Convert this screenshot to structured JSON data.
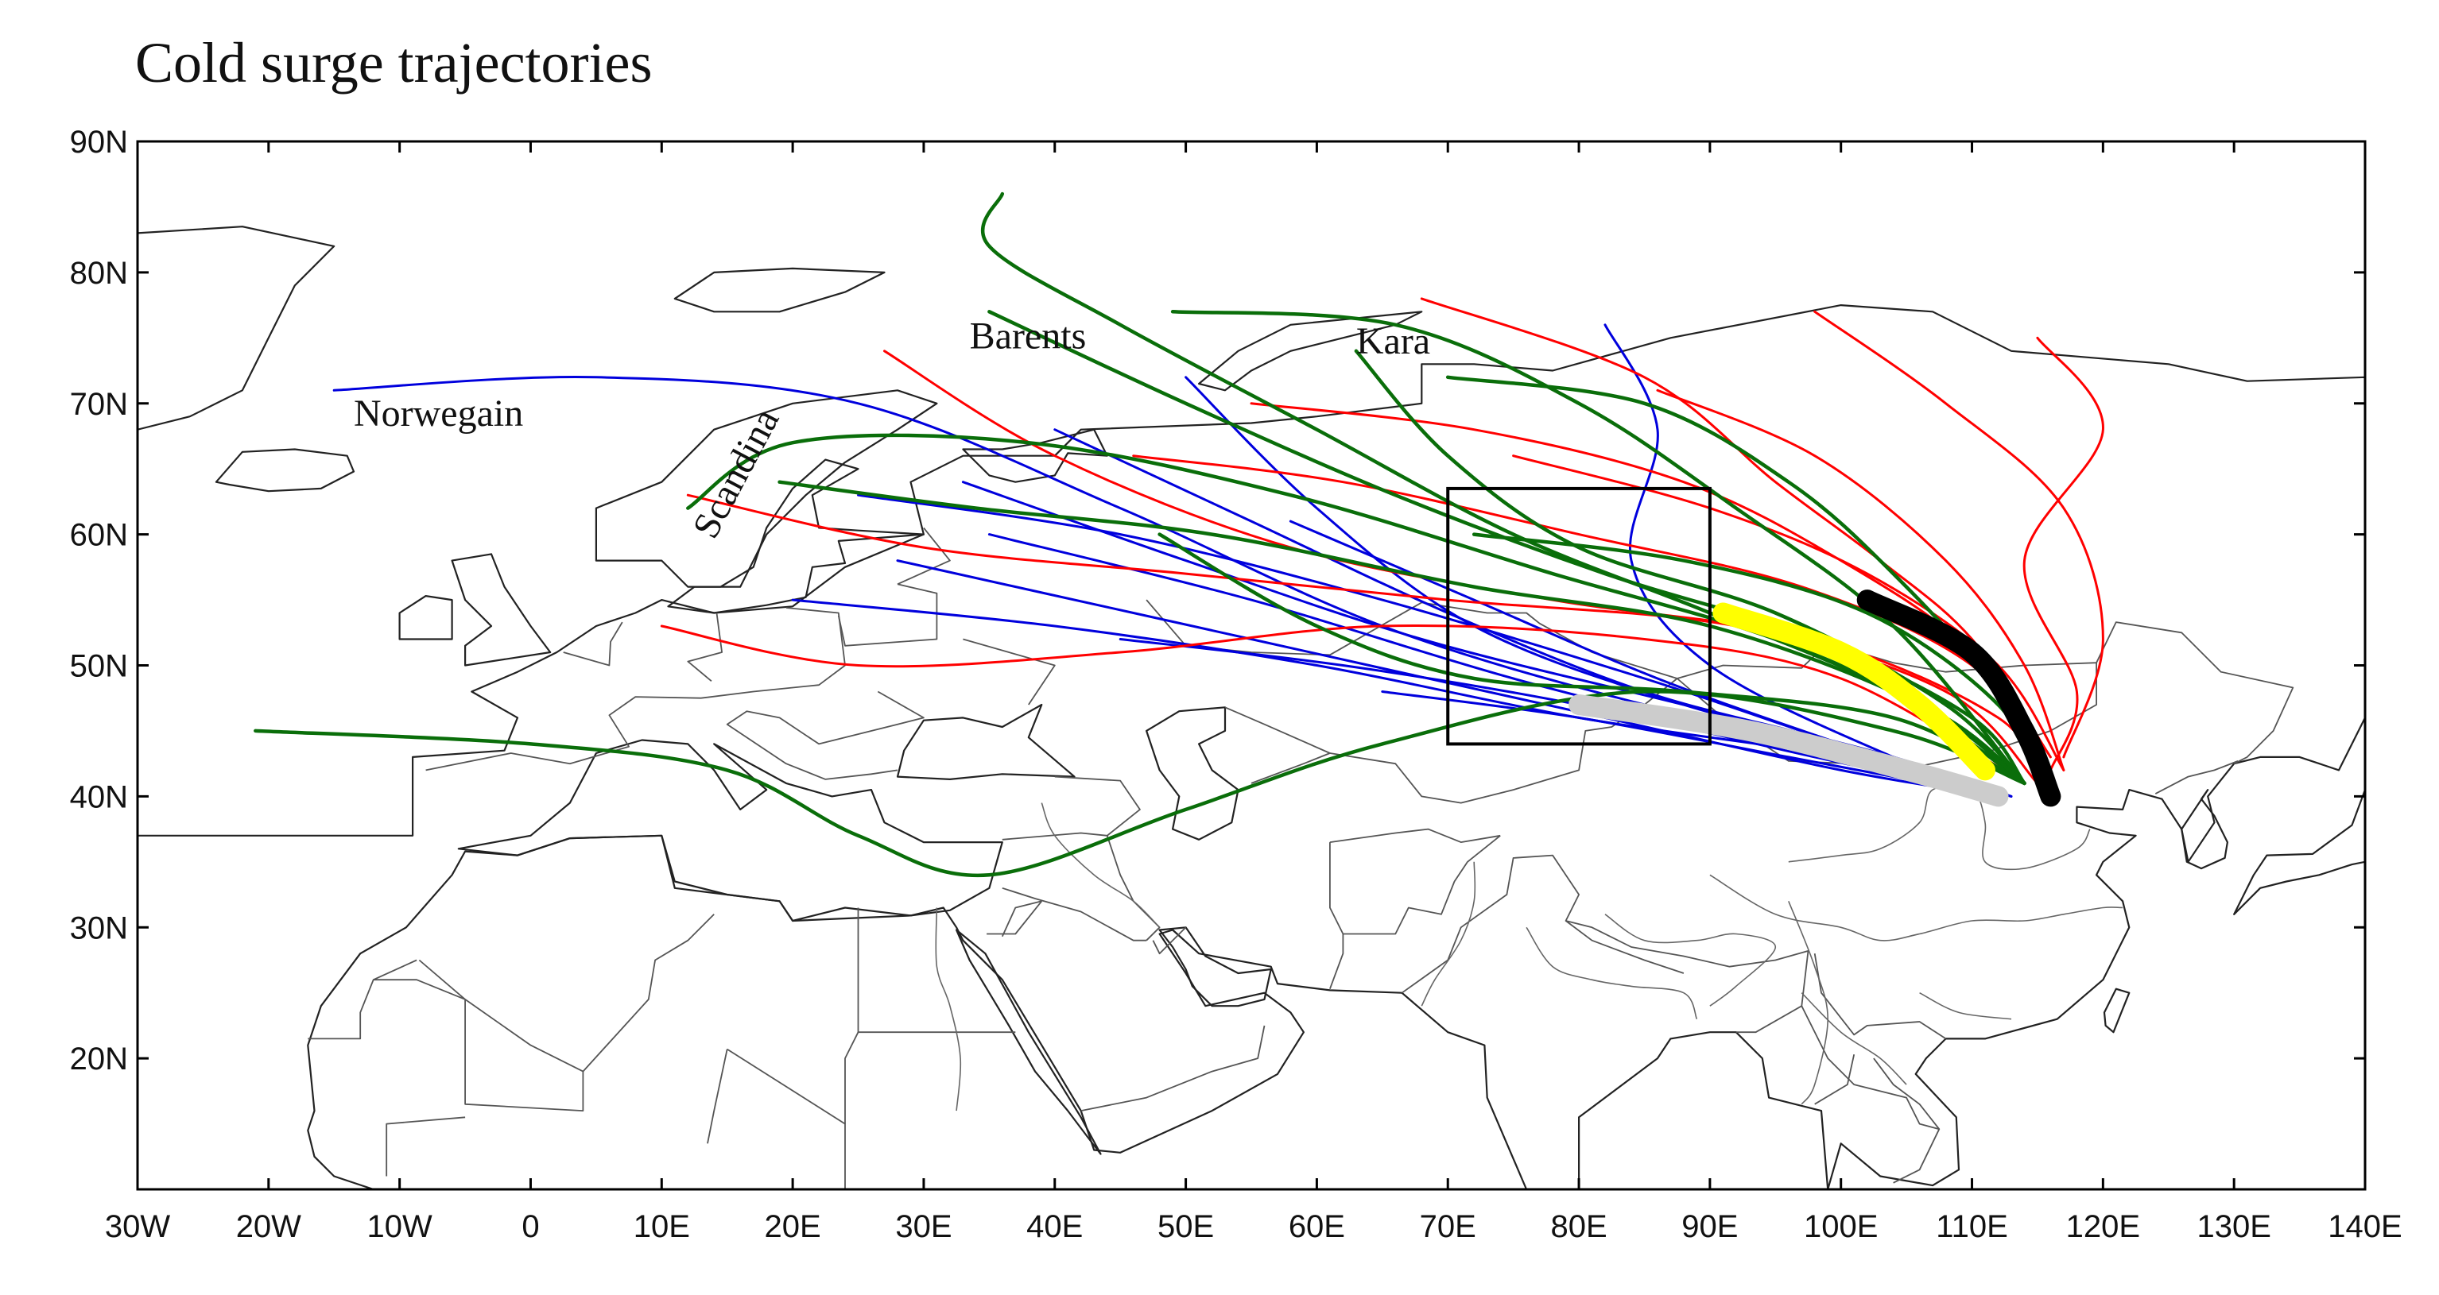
{
  "title": "Cold surge trajectories",
  "map": {
    "projection": "cylindrical equidistant",
    "lon_range": [
      -30,
      140
    ],
    "lat_range": [
      10,
      90
    ],
    "lon_ticks": [
      "30W",
      "20W",
      "10W",
      "0",
      "10E",
      "20E",
      "30E",
      "40E",
      "50E",
      "60E",
      "70E",
      "80E",
      "90E",
      "100E",
      "110E",
      "120E",
      "130E",
      "140E"
    ],
    "lat_ticks": [
      "90N",
      "80N",
      "70N",
      "60N",
      "50N",
      "40N",
      "30N",
      "20N"
    ],
    "region_labels": [
      {
        "text": "Norwegain",
        "lon": -13.5,
        "lat": 68.3
      },
      {
        "text": "Barents",
        "lon": 33.5,
        "lat": 74.2
      },
      {
        "text": "Kara",
        "lon": 63,
        "lat": 73.8
      },
      {
        "text": "Scandina",
        "lon": 14,
        "lat": 59.5,
        "rotate": -62
      }
    ],
    "box": {
      "lon": [
        70,
        90
      ],
      "lat": [
        44,
        63.5
      ],
      "color": "#000000"
    },
    "colors": {
      "red": "#ff0000",
      "blue": "#0000dd",
      "green": "#0a6e0a",
      "yellow": "#ffff00",
      "gray": "#cccccc",
      "black": "#000000",
      "coast": "#222222",
      "border": "#555555"
    }
  },
  "chart_data": {
    "type": "trajectory map",
    "title": "Cold surge trajectories",
    "x_axis": {
      "range": [
        -30,
        140
      ],
      "unit": "longitude (deg E)"
    },
    "y_axis": {
      "range": [
        10,
        90
      ],
      "unit": "latitude (deg N)"
    },
    "series": [
      {
        "color": "#0000dd",
        "trajectories": [
          [
            [
              -15,
              71
            ],
            [
              5,
              72
            ],
            [
              25,
              70
            ],
            [
              45,
              62
            ],
            [
              65,
              53
            ],
            [
              85,
              47
            ],
            [
              100,
              44
            ],
            [
              112,
              40
            ]
          ],
          [
            [
              20,
              55
            ],
            [
              40,
              53
            ],
            [
              60,
              50
            ],
            [
              80,
              46
            ],
            [
              100,
              43
            ],
            [
              112,
              40
            ]
          ],
          [
            [
              25,
              63
            ],
            [
              45,
              60
            ],
            [
              65,
              55
            ],
            [
              85,
              49
            ],
            [
              100,
              44
            ],
            [
              113,
              40
            ]
          ],
          [
            [
              35,
              60
            ],
            [
              55,
              55
            ],
            [
              75,
              49
            ],
            [
              95,
              44
            ],
            [
              112,
              40
            ]
          ],
          [
            [
              40,
              68
            ],
            [
              55,
              61
            ],
            [
              70,
              54
            ],
            [
              85,
              48
            ],
            [
              100,
              44
            ],
            [
              112,
              40
            ]
          ],
          [
            [
              50,
              72
            ],
            [
              60,
              62
            ],
            [
              72,
              53
            ],
            [
              88,
              47
            ],
            [
              104,
              43
            ],
            [
              113,
              40
            ]
          ],
          [
            [
              82,
              76
            ],
            [
              86,
              68
            ],
            [
              84,
              58
            ],
            [
              90,
              50
            ],
            [
              104,
              43
            ],
            [
              113,
              40
            ]
          ],
          [
            [
              28,
              58
            ],
            [
              46,
              54
            ],
            [
              64,
              50
            ],
            [
              82,
              46
            ],
            [
              100,
              42
            ],
            [
              112,
              40
            ]
          ],
          [
            [
              45,
              52
            ],
            [
              62,
              50
            ],
            [
              80,
              47
            ],
            [
              98,
              43
            ],
            [
              112,
              40
            ]
          ],
          [
            [
              58,
              61
            ],
            [
              72,
              55
            ],
            [
              86,
              49
            ],
            [
              100,
              44
            ],
            [
              112,
              40
            ]
          ],
          [
            [
              33,
              64
            ],
            [
              50,
              58
            ],
            [
              68,
              52
            ],
            [
              88,
              47
            ],
            [
              104,
              43
            ],
            [
              112,
              40
            ]
          ],
          [
            [
              65,
              48
            ],
            [
              80,
              46
            ],
            [
              96,
              43
            ],
            [
              112,
              40
            ]
          ]
        ]
      },
      {
        "color": "#ff0000",
        "trajectories": [
          [
            [
              27,
              74
            ],
            [
              40,
              66
            ],
            [
              58,
              59
            ],
            [
              78,
              55
            ],
            [
              98,
              52
            ],
            [
              112,
              46
            ],
            [
              115,
              41
            ]
          ],
          [
            [
              12,
              63
            ],
            [
              30,
              59
            ],
            [
              50,
              57
            ],
            [
              70,
              55
            ],
            [
              92,
              53
            ],
            [
              108,
              48
            ],
            [
              115,
              41
            ]
          ],
          [
            [
              10,
              53
            ],
            [
              25,
              50
            ],
            [
              45,
              51
            ],
            [
              65,
              53
            ],
            [
              85,
              52
            ],
            [
              100,
              49
            ],
            [
              114,
              41
            ]
          ],
          [
            [
              68,
              78
            ],
            [
              85,
              72
            ],
            [
              95,
              64
            ],
            [
              103,
              58
            ],
            [
              110,
              52
            ],
            [
              116,
              43
            ]
          ],
          [
            [
              98,
              77
            ],
            [
              108,
              70
            ],
            [
              117,
              62
            ],
            [
              120,
              52
            ],
            [
              117,
              43
            ]
          ],
          [
            [
              115,
              75
            ],
            [
              120,
              68
            ],
            [
              114,
              58
            ],
            [
              118,
              48
            ],
            [
              116,
              42
            ]
          ],
          [
            [
              55,
              70
            ],
            [
              72,
              68
            ],
            [
              88,
              64
            ],
            [
              100,
              58
            ],
            [
              110,
              51
            ],
            [
              116,
              42
            ]
          ],
          [
            [
              75,
              66
            ],
            [
              90,
              62
            ],
            [
              102,
              57
            ],
            [
              112,
              50
            ],
            [
              117,
              42
            ]
          ],
          [
            [
              46,
              66
            ],
            [
              62,
              64
            ],
            [
              80,
              60
            ],
            [
              97,
              56
            ],
            [
              110,
              50
            ],
            [
              116,
              42
            ]
          ],
          [
            [
              86,
              71
            ],
            [
              98,
              66
            ],
            [
              108,
              58
            ],
            [
              114,
              50
            ],
            [
              117,
              42
            ]
          ]
        ]
      },
      {
        "color": "#0a6e0a",
        "trajectories": [
          [
            [
              -21,
              45
            ],
            [
              0,
              44
            ],
            [
              15,
              42
            ],
            [
              25,
              37
            ],
            [
              35,
              34
            ],
            [
              50,
              39
            ],
            [
              65,
              44
            ],
            [
              85,
              48
            ],
            [
              104,
              45
            ],
            [
              114,
              41
            ]
          ],
          [
            [
              36,
              86
            ],
            [
              35,
              82
            ],
            [
              45,
              76
            ],
            [
              60,
              68
            ],
            [
              75,
              60
            ],
            [
              90,
              54
            ],
            [
              104,
              48
            ],
            [
              114,
              41
            ]
          ],
          [
            [
              12,
              62
            ],
            [
              20,
              67
            ],
            [
              38,
              67
            ],
            [
              58,
              63
            ],
            [
              78,
              57
            ],
            [
              95,
              52
            ],
            [
              108,
              46
            ],
            [
              114,
              41
            ]
          ],
          [
            [
              35,
              77
            ],
            [
              50,
              70
            ],
            [
              66,
              63
            ],
            [
              82,
              57
            ],
            [
              98,
              52
            ],
            [
              110,
              46
            ],
            [
              114,
              41
            ]
          ],
          [
            [
              49,
              77
            ],
            [
              66,
              76
            ],
            [
              80,
              70
            ],
            [
              92,
              62
            ],
            [
              104,
              53
            ],
            [
              114,
              41
            ]
          ],
          [
            [
              63,
              74
            ],
            [
              70,
              66
            ],
            [
              80,
              59
            ],
            [
              95,
              54
            ],
            [
              108,
              47
            ],
            [
              114,
              41
            ]
          ],
          [
            [
              70,
              72
            ],
            [
              85,
              70
            ],
            [
              96,
              64
            ],
            [
              104,
              57
            ],
            [
              112,
              48
            ],
            [
              115,
              41
            ]
          ],
          [
            [
              19,
              64
            ],
            [
              34,
              62
            ],
            [
              52,
              60
            ],
            [
              72,
              56
            ],
            [
              90,
              53
            ],
            [
              106,
              47
            ],
            [
              114,
              41
            ]
          ],
          [
            [
              48,
              60
            ],
            [
              60,
              53
            ],
            [
              72,
              49
            ],
            [
              88,
              48
            ],
            [
              104,
              46
            ],
            [
              114,
              41
            ]
          ],
          [
            [
              72,
              60
            ],
            [
              88,
              58
            ],
            [
              102,
              54
            ],
            [
              112,
              47
            ],
            [
              115,
              41
            ]
          ]
        ]
      },
      {
        "color": "#ffff00",
        "composite": true,
        "trajectories": [
          [
            [
              91,
              54
            ],
            [
              100,
              51
            ],
            [
              106,
              47
            ],
            [
              111,
              42
            ]
          ]
        ]
      },
      {
        "color": "#cccccc",
        "composite": true,
        "trajectories": [
          [
            [
              80,
              47
            ],
            [
              93,
              45
            ],
            [
              105,
              42
            ],
            [
              112,
              40
            ]
          ]
        ]
      },
      {
        "color": "#000000",
        "composite": true,
        "trajectories": [
          [
            [
              102,
              55
            ],
            [
              110,
              51
            ],
            [
              114,
              45
            ],
            [
              116,
              40
            ]
          ]
        ]
      }
    ]
  }
}
